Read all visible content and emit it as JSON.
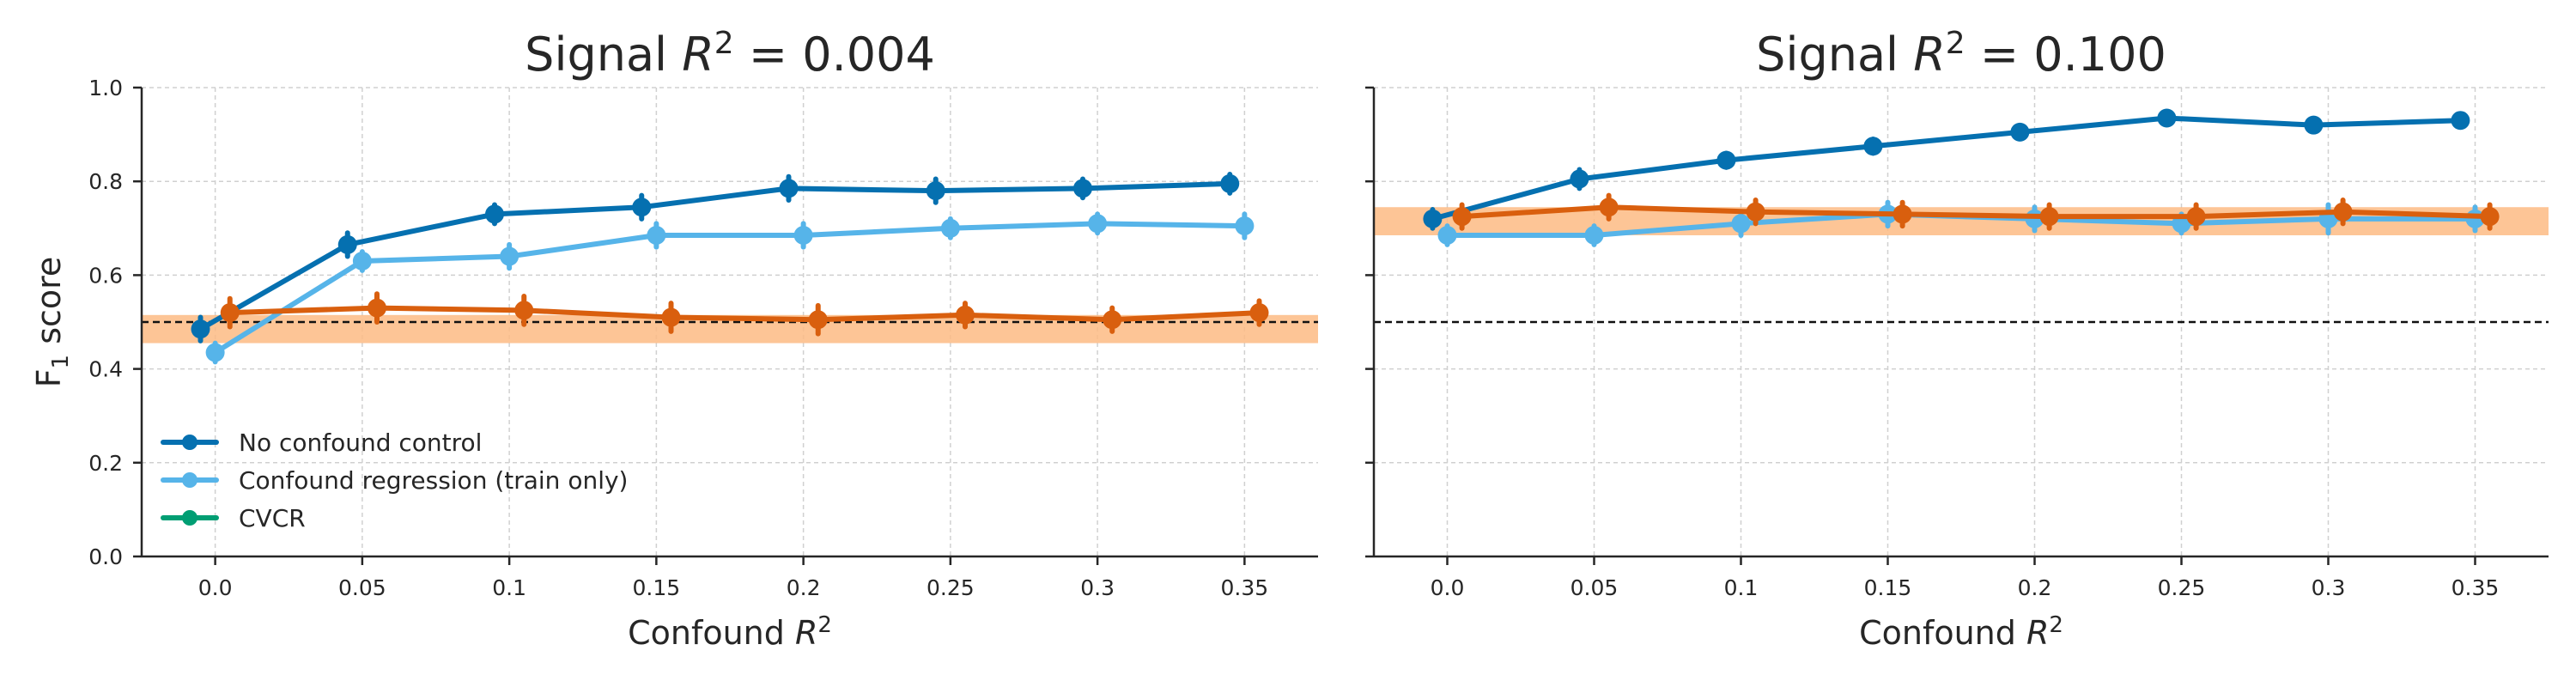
{
  "chart_data": [
    {
      "type": "line",
      "title": "Signal R² = 0.004",
      "title_parts": {
        "prefix": "Signal ",
        "var": "R",
        "sup": "2",
        "suffix": " = 0.004"
      },
      "xlabel_parts": {
        "prefix": "Confound ",
        "var": "R",
        "sup": "2"
      },
      "ylabel_parts": {
        "base": "F",
        "sub": "1",
        "suffix": " score"
      },
      "x_ticks": [
        "0.0",
        "0.05",
        "0.1",
        "0.15",
        "0.2",
        "0.25",
        "0.3",
        "0.35"
      ],
      "y_ticks": [
        "0.0",
        "0.2",
        "0.4",
        "0.6",
        "0.8",
        "1.0"
      ],
      "xlim": [
        -0.025,
        0.375
      ],
      "ylim": [
        0.0,
        1.0
      ],
      "grid": true,
      "show_y_tick_labels": true,
      "reference_line": 0.5,
      "band": {
        "low": 0.455,
        "high": 0.515,
        "color": "#fdbb84"
      },
      "legend": {
        "placement": "lower-left"
      },
      "series": [
        {
          "name": "No confound control",
          "color": "#0570b0",
          "x": [
            -0.005,
            0.045,
            0.095,
            0.145,
            0.195,
            0.245,
            0.295,
            0.345
          ],
          "y": [
            0.485,
            0.665,
            0.73,
            0.745,
            0.785,
            0.78,
            0.785,
            0.795
          ],
          "err": [
            0.025,
            0.025,
            0.02,
            0.025,
            0.025,
            0.025,
            0.02,
            0.02
          ]
        },
        {
          "name": "Confound regression (train only)",
          "color": "#56b4e9",
          "x": [
            0.0,
            0.05,
            0.1,
            0.15,
            0.2,
            0.25,
            0.3,
            0.35
          ],
          "y": [
            0.435,
            0.63,
            0.64,
            0.685,
            0.685,
            0.7,
            0.71,
            0.705
          ],
          "err": [
            0.02,
            0.02,
            0.025,
            0.025,
            0.025,
            0.02,
            0.02,
            0.025
          ]
        },
        {
          "name": "CVCR",
          "color": "#009e73",
          "x": [],
          "y": [],
          "err": []
        },
        {
          "name": "",
          "color": "#d95f0e",
          "x": [
            0.005,
            0.055,
            0.105,
            0.155,
            0.205,
            0.255,
            0.305,
            0.355
          ],
          "y": [
            0.52,
            0.53,
            0.525,
            0.51,
            0.505,
            0.515,
            0.505,
            0.52
          ],
          "err": [
            0.03,
            0.03,
            0.03,
            0.03,
            0.03,
            0.025,
            0.025,
            0.025
          ]
        }
      ]
    },
    {
      "type": "line",
      "title": "Signal R² = 0.100",
      "title_parts": {
        "prefix": "Signal ",
        "var": "R",
        "sup": "2",
        "suffix": " = 0.100"
      },
      "xlabel_parts": {
        "prefix": "Confound ",
        "var": "R",
        "sup": "2"
      },
      "x_ticks": [
        "0.0",
        "0.05",
        "0.1",
        "0.15",
        "0.2",
        "0.25",
        "0.3",
        "0.35"
      ],
      "y_ticks": [
        "0.0",
        "0.2",
        "0.4",
        "0.6",
        "0.8",
        "1.0"
      ],
      "xlim": [
        -0.025,
        0.375
      ],
      "ylim": [
        0.0,
        1.0
      ],
      "grid": true,
      "show_y_tick_labels": false,
      "reference_line": 0.5,
      "band": {
        "low": 0.685,
        "high": 0.745,
        "color": "#fdbb84"
      },
      "series": [
        {
          "name": "No confound control",
          "color": "#0570b0",
          "x": [
            -0.005,
            0.045,
            0.095,
            0.145,
            0.195,
            0.245,
            0.295,
            0.345
          ],
          "y": [
            0.72,
            0.805,
            0.845,
            0.875,
            0.905,
            0.935,
            0.92,
            0.93
          ],
          "err": [
            0.02,
            0.02,
            0.015,
            0.015,
            0.01,
            0.01,
            0.01,
            0.01
          ]
        },
        {
          "name": "Confound regression (train only)",
          "color": "#56b4e9",
          "x": [
            0.0,
            0.05,
            0.1,
            0.15,
            0.2,
            0.25,
            0.3,
            0.35
          ],
          "y": [
            0.685,
            0.685,
            0.71,
            0.73,
            0.72,
            0.71,
            0.72,
            0.72
          ],
          "err": [
            0.02,
            0.02,
            0.025,
            0.025,
            0.025,
            0.02,
            0.03,
            0.025
          ]
        },
        {
          "name": "CVCR",
          "color": "#009e73",
          "x": [],
          "y": [],
          "err": []
        },
        {
          "name": "",
          "color": "#d95f0e",
          "x": [
            0.005,
            0.055,
            0.105,
            0.155,
            0.205,
            0.255,
            0.305,
            0.355
          ],
          "y": [
            0.725,
            0.745,
            0.735,
            0.73,
            0.725,
            0.725,
            0.735,
            0.725
          ],
          "err": [
            0.025,
            0.025,
            0.025,
            0.025,
            0.025,
            0.025,
            0.025,
            0.025
          ]
        }
      ]
    }
  ]
}
